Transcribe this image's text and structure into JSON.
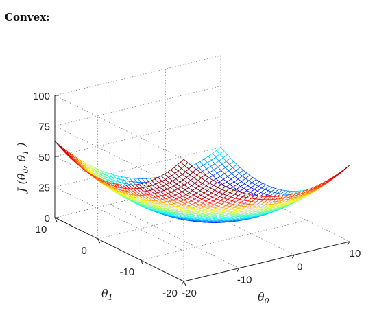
{
  "heading": "Convex:",
  "chart_data": {
    "type": "surface",
    "function": "theta0^2 + theta1^2 (bowl-shaped cost surface)",
    "xlabel": "θ0",
    "ylabel": "θ1",
    "zlabel": "J(θ0, θ1)",
    "x_range": [
      -20,
      10
    ],
    "y_range": [
      -20,
      10
    ],
    "zlim": [
      0,
      100
    ],
    "x_ticks": [
      "-20",
      "-10",
      "0",
      "10"
    ],
    "y_ticks": [
      "-20",
      "-10",
      "0",
      "10"
    ],
    "z_ticks": [
      "0",
      "25",
      "50",
      "75",
      "100"
    ],
    "grid": true,
    "colormap": "jet",
    "mesh_resolution": 40
  },
  "labels": {
    "xlabel_main": "θ",
    "xlabel_sub": "0",
    "ylabel_main": "θ",
    "ylabel_sub": "1",
    "zlabel_prefix": "J (θ",
    "zlabel_sub0": "0",
    "zlabel_mid": ", θ",
    "zlabel_sub1": "1",
    "zlabel_suffix": " )"
  }
}
